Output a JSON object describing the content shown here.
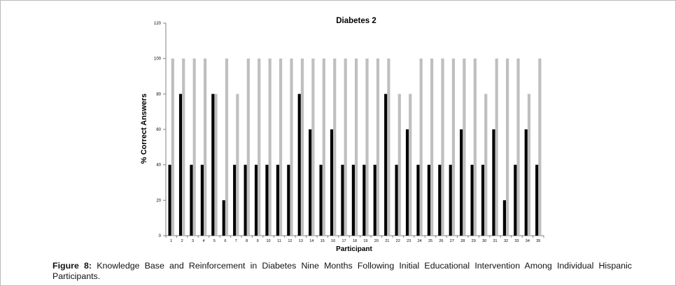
{
  "caption": {
    "label": "Figure 8:",
    "text": "Knowledge Base and Reinforcement in Diabetes Nine Months Following Initial Educational Intervention Among Individual Hispanic Participants."
  },
  "chart_data": {
    "type": "bar",
    "title": "Diabetes 2",
    "xlabel": "Participant",
    "ylabel": "% Correct Answers",
    "ylim": [
      0,
      120
    ],
    "yticks": [
      0,
      20,
      40,
      60,
      80,
      100,
      120
    ],
    "grid": false,
    "legend": "none",
    "categories": [
      "1",
      "2",
      "3",
      "4",
      "5",
      "6",
      "7",
      "8",
      "9",
      "10",
      "11",
      "12",
      "13",
      "14",
      "15",
      "16",
      "17",
      "18",
      "19",
      "20",
      "21",
      "22",
      "23",
      "24",
      "25",
      "26",
      "27",
      "28",
      "29",
      "30",
      "31",
      "32",
      "33",
      "34",
      "35"
    ],
    "series": [
      {
        "color": "#000000",
        "values": [
          40,
          80,
          40,
          40,
          80,
          20,
          40,
          40,
          40,
          40,
          40,
          40,
          80,
          60,
          40,
          60,
          40,
          40,
          40,
          40,
          80,
          40,
          60,
          40,
          40,
          40,
          40,
          60,
          40,
          40,
          60,
          20,
          40,
          60,
          40
        ]
      },
      {
        "color": "#bfbfbf",
        "values": [
          100,
          100,
          100,
          100,
          80,
          100,
          80,
          100,
          100,
          100,
          100,
          100,
          100,
          100,
          100,
          100,
          100,
          100,
          100,
          100,
          100,
          80,
          80,
          100,
          100,
          100,
          100,
          100,
          100,
          80,
          100,
          100,
          100,
          80,
          100
        ]
      }
    ]
  }
}
